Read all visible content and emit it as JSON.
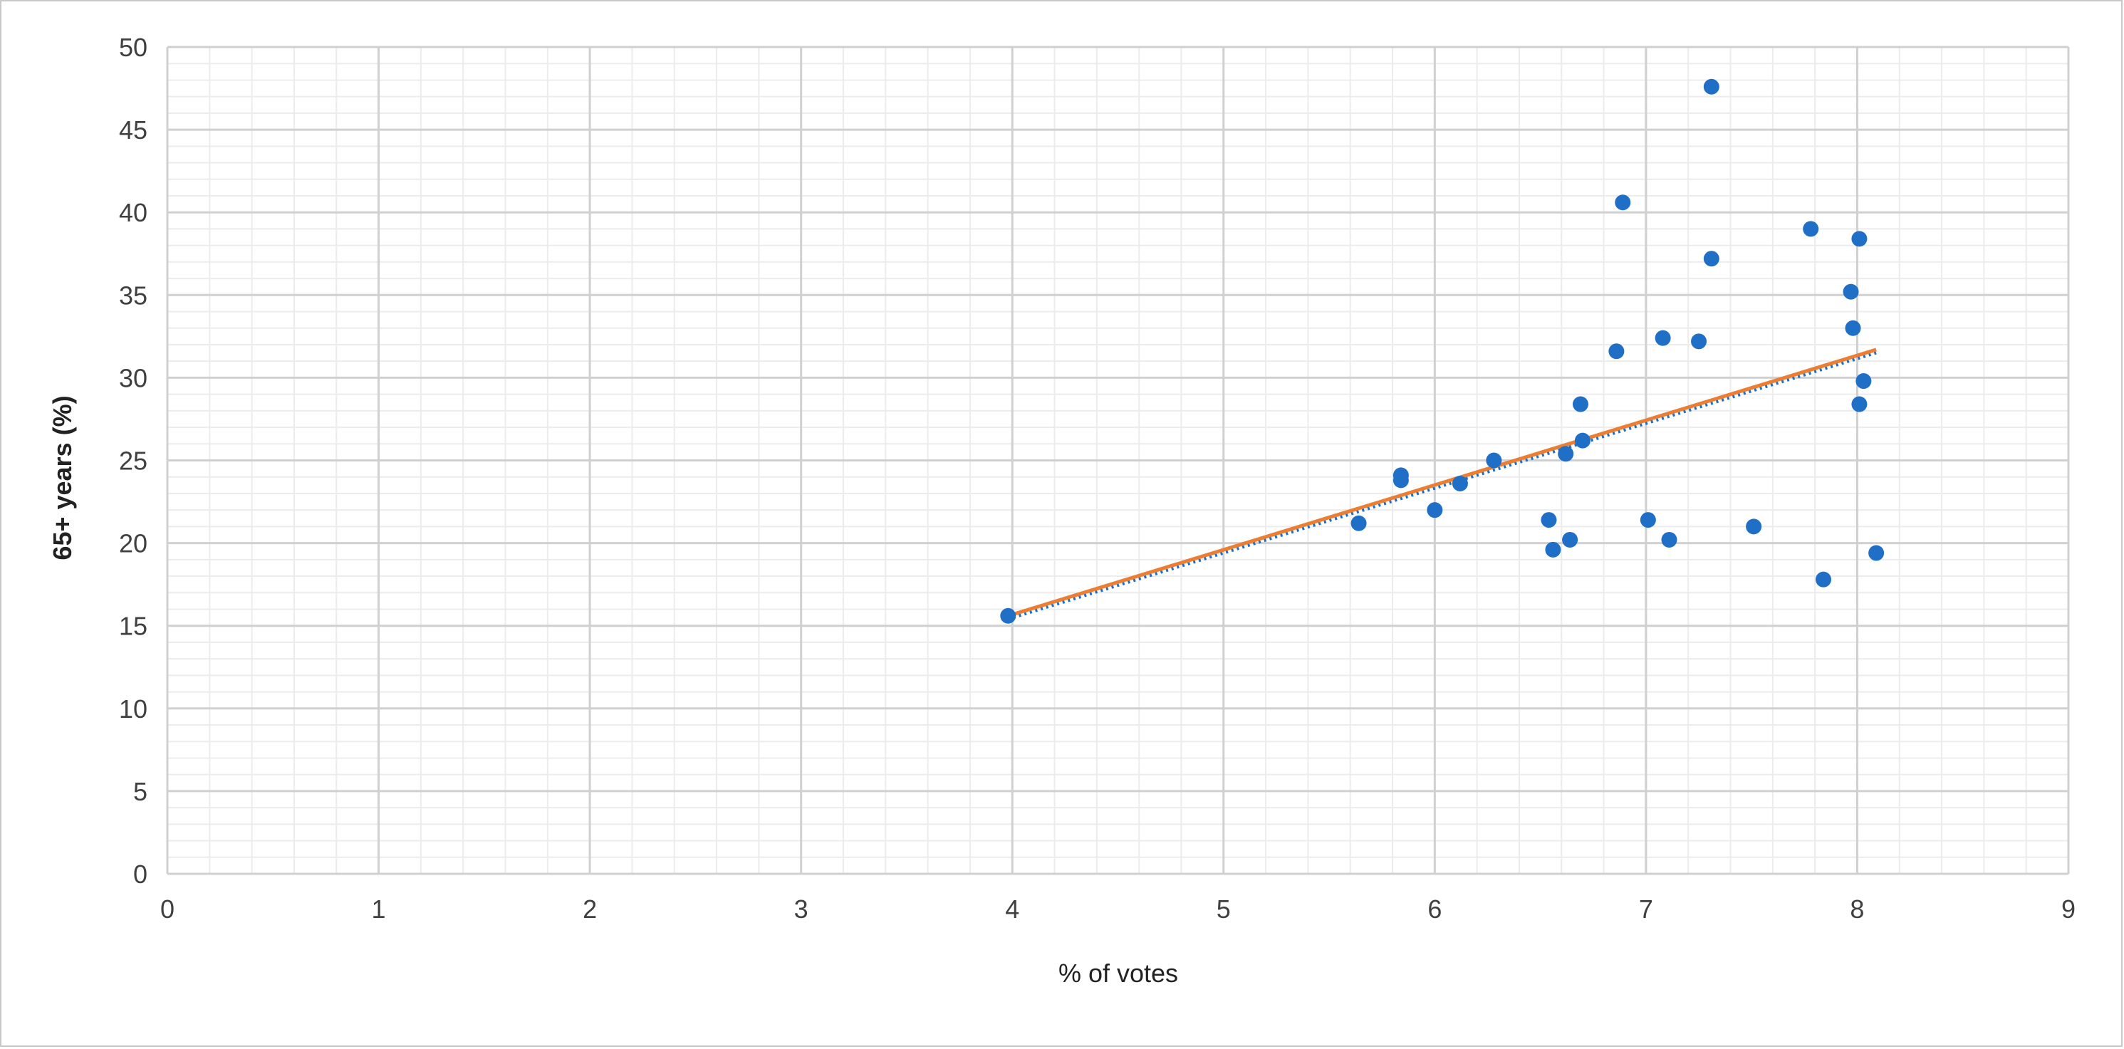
{
  "chart_data": {
    "type": "scatter",
    "title": "",
    "xlabel": "% of votes",
    "ylabel": "65+ years (%)",
    "xlim": [
      0,
      9
    ],
    "ylim": [
      0,
      50
    ],
    "x_ticks": [
      "0",
      "1",
      "2",
      "3",
      "4",
      "5",
      "6",
      "7",
      "8",
      "9"
    ],
    "y_ticks": [
      "0",
      "5",
      "10",
      "15",
      "20",
      "25",
      "30",
      "35",
      "40",
      "45",
      "50"
    ],
    "x_minor_step": 0.2,
    "y_minor_step": 1,
    "grid": true,
    "legend": "none",
    "series": [
      {
        "color": "#1f6fc6",
        "points": [
          {
            "x": 3.98,
            "y": 15.6
          },
          {
            "x": 5.64,
            "y": 21.2
          },
          {
            "x": 5.84,
            "y": 24.1
          },
          {
            "x": 5.84,
            "y": 23.8
          },
          {
            "x": 6.0,
            "y": 22.0
          },
          {
            "x": 6.12,
            "y": 23.6
          },
          {
            "x": 6.28,
            "y": 25.0
          },
          {
            "x": 6.54,
            "y": 21.4
          },
          {
            "x": 6.56,
            "y": 19.6
          },
          {
            "x": 6.62,
            "y": 25.4
          },
          {
            "x": 6.64,
            "y": 20.2
          },
          {
            "x": 6.69,
            "y": 28.4
          },
          {
            "x": 6.7,
            "y": 26.2
          },
          {
            "x": 6.86,
            "y": 31.6
          },
          {
            "x": 6.89,
            "y": 40.6
          },
          {
            "x": 7.01,
            "y": 21.4
          },
          {
            "x": 7.08,
            "y": 32.4
          },
          {
            "x": 7.11,
            "y": 20.2
          },
          {
            "x": 7.25,
            "y": 32.2
          },
          {
            "x": 7.31,
            "y": 47.6
          },
          {
            "x": 7.31,
            "y": 37.2
          },
          {
            "x": 7.51,
            "y": 21.0
          },
          {
            "x": 7.78,
            "y": 39.0
          },
          {
            "x": 7.84,
            "y": 17.8
          },
          {
            "x": 7.97,
            "y": 35.2
          },
          {
            "x": 7.98,
            "y": 33.0
          },
          {
            "x": 8.01,
            "y": 38.4
          },
          {
            "x": 8.01,
            "y": 28.4
          },
          {
            "x": 8.03,
            "y": 29.8
          },
          {
            "x": 8.09,
            "y": 19.4
          }
        ]
      }
    ],
    "trendlines": [
      {
        "x": [
          3.98,
          8.09
        ],
        "y": [
          15.6,
          31.7
        ],
        "color": "#ed7d31",
        "style": "solid"
      },
      {
        "x": [
          3.98,
          8.09
        ],
        "y": [
          15.4,
          31.5
        ],
        "color": "#1f6fc6",
        "style": "dotted"
      }
    ],
    "colors": {
      "grid_major": "#d0d0d0",
      "grid_minor": "#ececec",
      "tick_text": "#404040"
    }
  }
}
